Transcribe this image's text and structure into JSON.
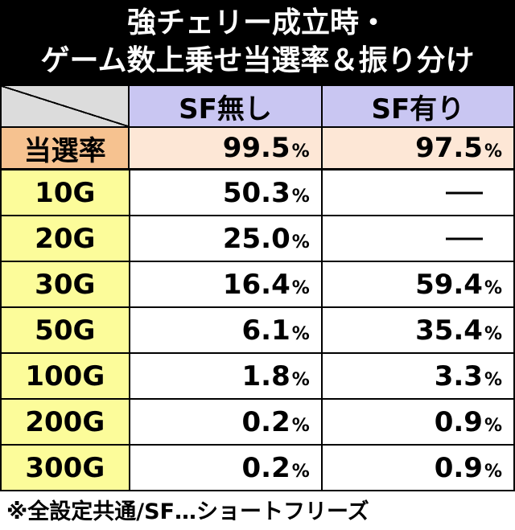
{
  "title": {
    "line1": "強チェリー成立時・",
    "line2": "ゲーム数上乗せ当選率＆振り分け"
  },
  "table": {
    "col_headers": [
      "SF無し",
      "SF有り"
    ],
    "rate_row": {
      "label": "当選率",
      "sf_none": "99.5",
      "sf_yes": "97.5",
      "unit": "%"
    },
    "rows": [
      {
        "label": "10G",
        "sf_none": "50.3",
        "sf_yes": ""
      },
      {
        "label": "20G",
        "sf_none": "25.0",
        "sf_yes": ""
      },
      {
        "label": "30G",
        "sf_none": "16.4",
        "sf_yes": "59.4"
      },
      {
        "label": "50G",
        "sf_none": "6.1",
        "sf_yes": "35.4"
      },
      {
        "label": "100G",
        "sf_none": "1.8",
        "sf_yes": "3.3"
      },
      {
        "label": "200G",
        "sf_none": "0.2",
        "sf_yes": "0.9"
      },
      {
        "label": "300G",
        "sf_none": "0.2",
        "sf_yes": "0.9"
      }
    ],
    "unit": "%"
  },
  "footnote": "※全設定共通/SF…ショートフリーズ",
  "colors": {
    "title_bg": "#000000",
    "header_bg": "#c9c6f2",
    "rate_label_bg": "#f6c290",
    "rate_value_bg": "#fde7d6",
    "row_label_bg": "#fcfc9a"
  }
}
